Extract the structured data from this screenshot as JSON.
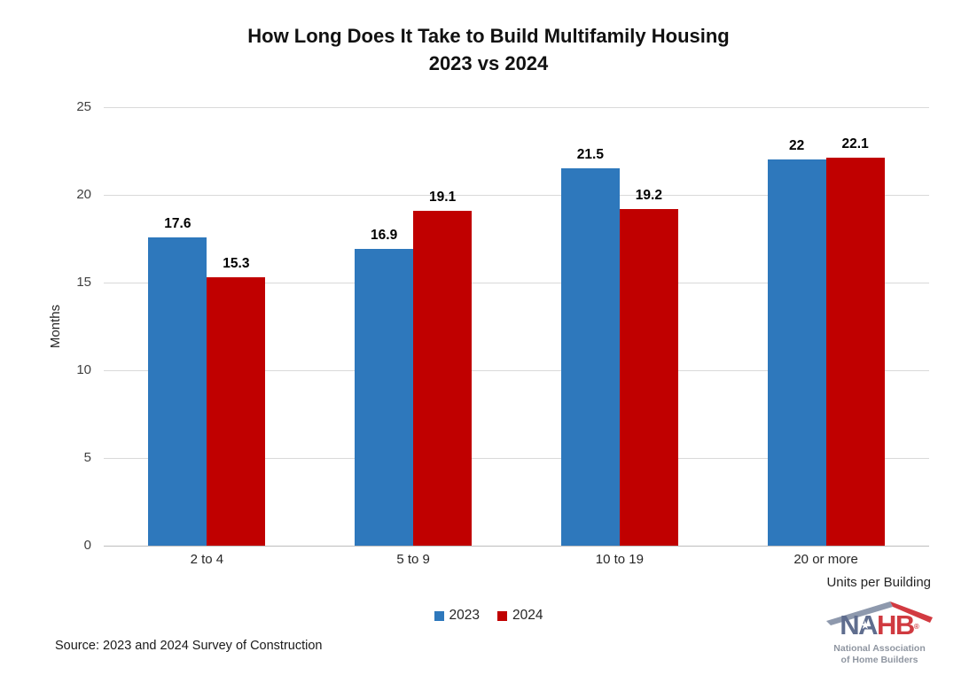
{
  "title": {
    "line1": "How Long Does It Take to Build Multifamily Housing",
    "line2": "2023 vs 2024"
  },
  "chart_data": {
    "type": "bar",
    "categories": [
      "2 to 4",
      "5 to 9",
      "10 to 19",
      "20 or more"
    ],
    "series": [
      {
        "name": "2023",
        "color": "#2e78bc",
        "values": [
          17.6,
          16.9,
          21.5,
          22
        ]
      },
      {
        "name": "2024",
        "color": "#c00000",
        "values": [
          15.3,
          19.1,
          19.2,
          22.1
        ]
      }
    ],
    "ylabel": "Months",
    "xlabel": "Units per Building",
    "ylim": [
      0,
      25
    ],
    "yticks": [
      0,
      5,
      10,
      15,
      20,
      25
    ],
    "grid": true,
    "legend_position": "bottom"
  },
  "source": "Source: 2023 and 2024 Survey of Construction",
  "logo": {
    "letters_blue": "NA",
    "letters_red": "HB",
    "registered_mark": "®",
    "star_icon": "★",
    "tagline_line1": "National Association",
    "tagline_line2": "of Home Builders",
    "colors": {
      "navy": "#5f6d8e",
      "red": "#d03a40",
      "gray": "#8f96a1"
    }
  }
}
